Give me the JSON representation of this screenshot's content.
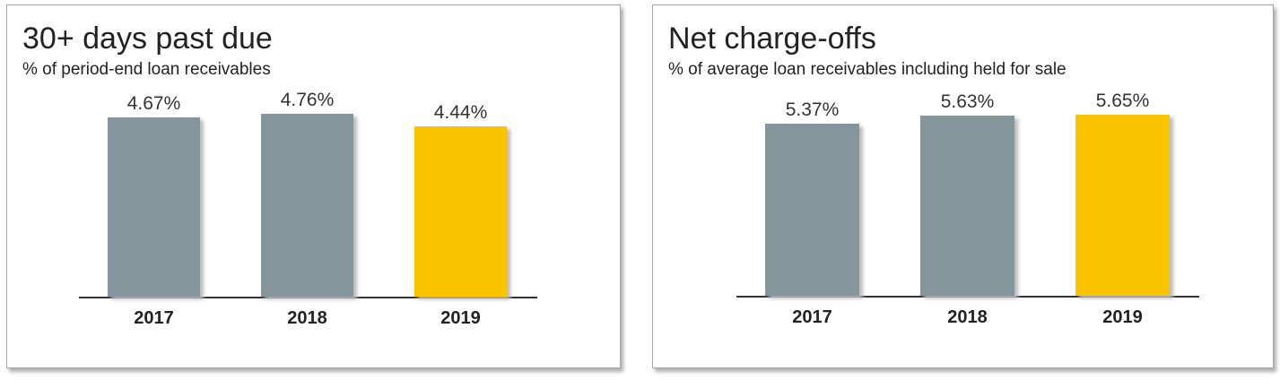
{
  "chart_data": [
    {
      "type": "bar",
      "title": "30+ days past due",
      "subtitle": "% of period-end loan receivables",
      "categories": [
        "2017",
        "2018",
        "2019"
      ],
      "values": [
        4.67,
        4.76,
        4.44
      ],
      "value_labels": [
        "4.67%",
        "4.76%",
        "4.44%"
      ],
      "colors": [
        "#84969b",
        "#84969b",
        "#fac400"
      ],
      "ylim": [
        0,
        7.0
      ],
      "grid": false
    },
    {
      "type": "bar",
      "title": "Net charge-offs",
      "subtitle": "% of average loan receivables including held for sale",
      "categories": [
        "2017",
        "2018",
        "2019"
      ],
      "values": [
        5.37,
        5.63,
        5.65
      ],
      "value_labels": [
        "5.37%",
        "5.63%",
        "5.65%"
      ],
      "colors": [
        "#84969b",
        "#84969b",
        "#fac400"
      ],
      "ylim": [
        0,
        8.4
      ],
      "grid": false
    }
  ]
}
